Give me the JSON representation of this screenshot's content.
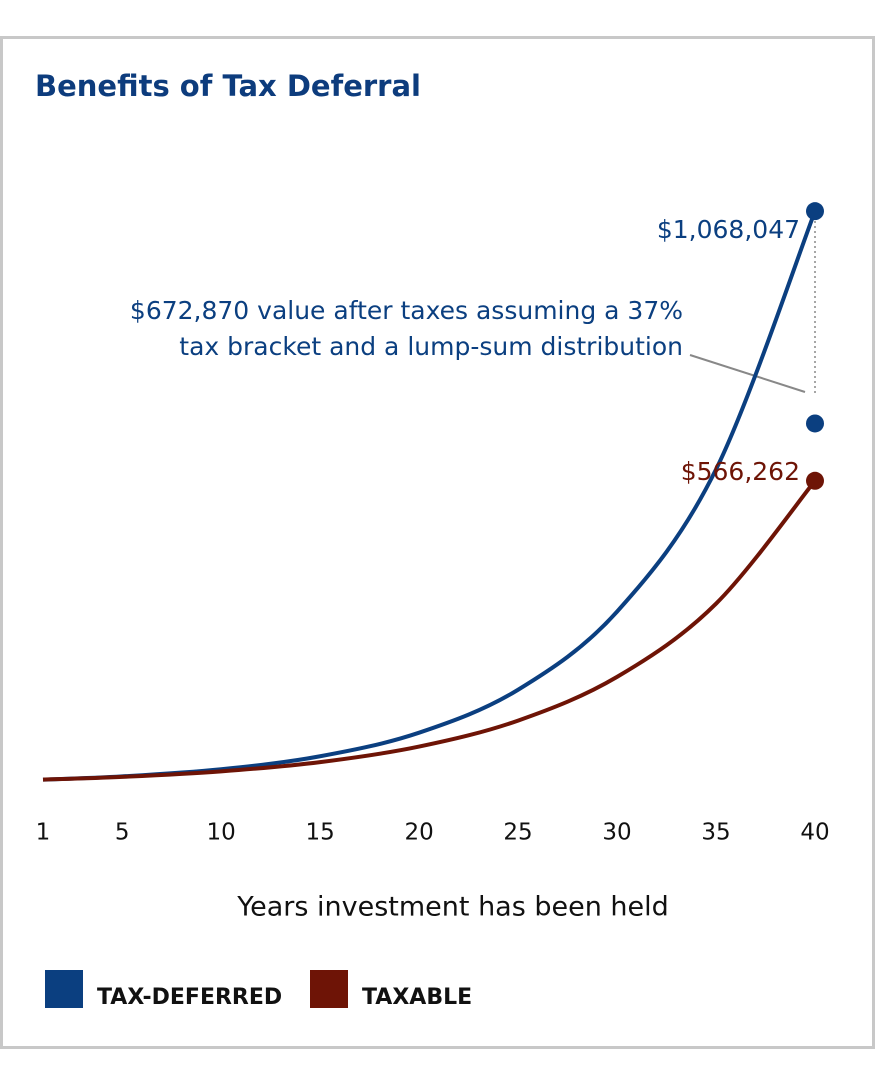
{
  "chart_data": {
    "type": "line",
    "title": "Benefits of Tax Deferral",
    "x": [
      1,
      5,
      10,
      15,
      20,
      25,
      30,
      35,
      40
    ],
    "series": [
      {
        "name": "TAX-DEFERRED",
        "color": "#0b3f80",
        "values": [
          10000,
          16100,
          29400,
          53500,
          97400,
          177300,
          322700,
          587400,
          1068047
        ],
        "value_labels": [
          null,
          null,
          null,
          null,
          null,
          null,
          null,
          null,
          "$1,068,047"
        ]
      },
      {
        "name": "TAXABLE",
        "color": "#6e1406",
        "values": [
          10000,
          15100,
          25400,
          42600,
          71500,
          119900,
          201200,
          337500,
          566262
        ],
        "value_labels": [
          null,
          null,
          null,
          null,
          null,
          null,
          null,
          null,
          "$566,262"
        ]
      }
    ],
    "annotation": {
      "x": 40,
      "value": 672870,
      "lines": [
        "$672,870 value after taxes assuming a 37%",
        "tax bracket and a lump-sum distribution"
      ]
    },
    "xlabel": "Years investment has been held",
    "xlim": [
      1,
      40
    ],
    "xticks": [
      1,
      5,
      10,
      15,
      20,
      25,
      30,
      35,
      40
    ],
    "ylim": [
      0,
      1100000
    ],
    "grid": false
  }
}
